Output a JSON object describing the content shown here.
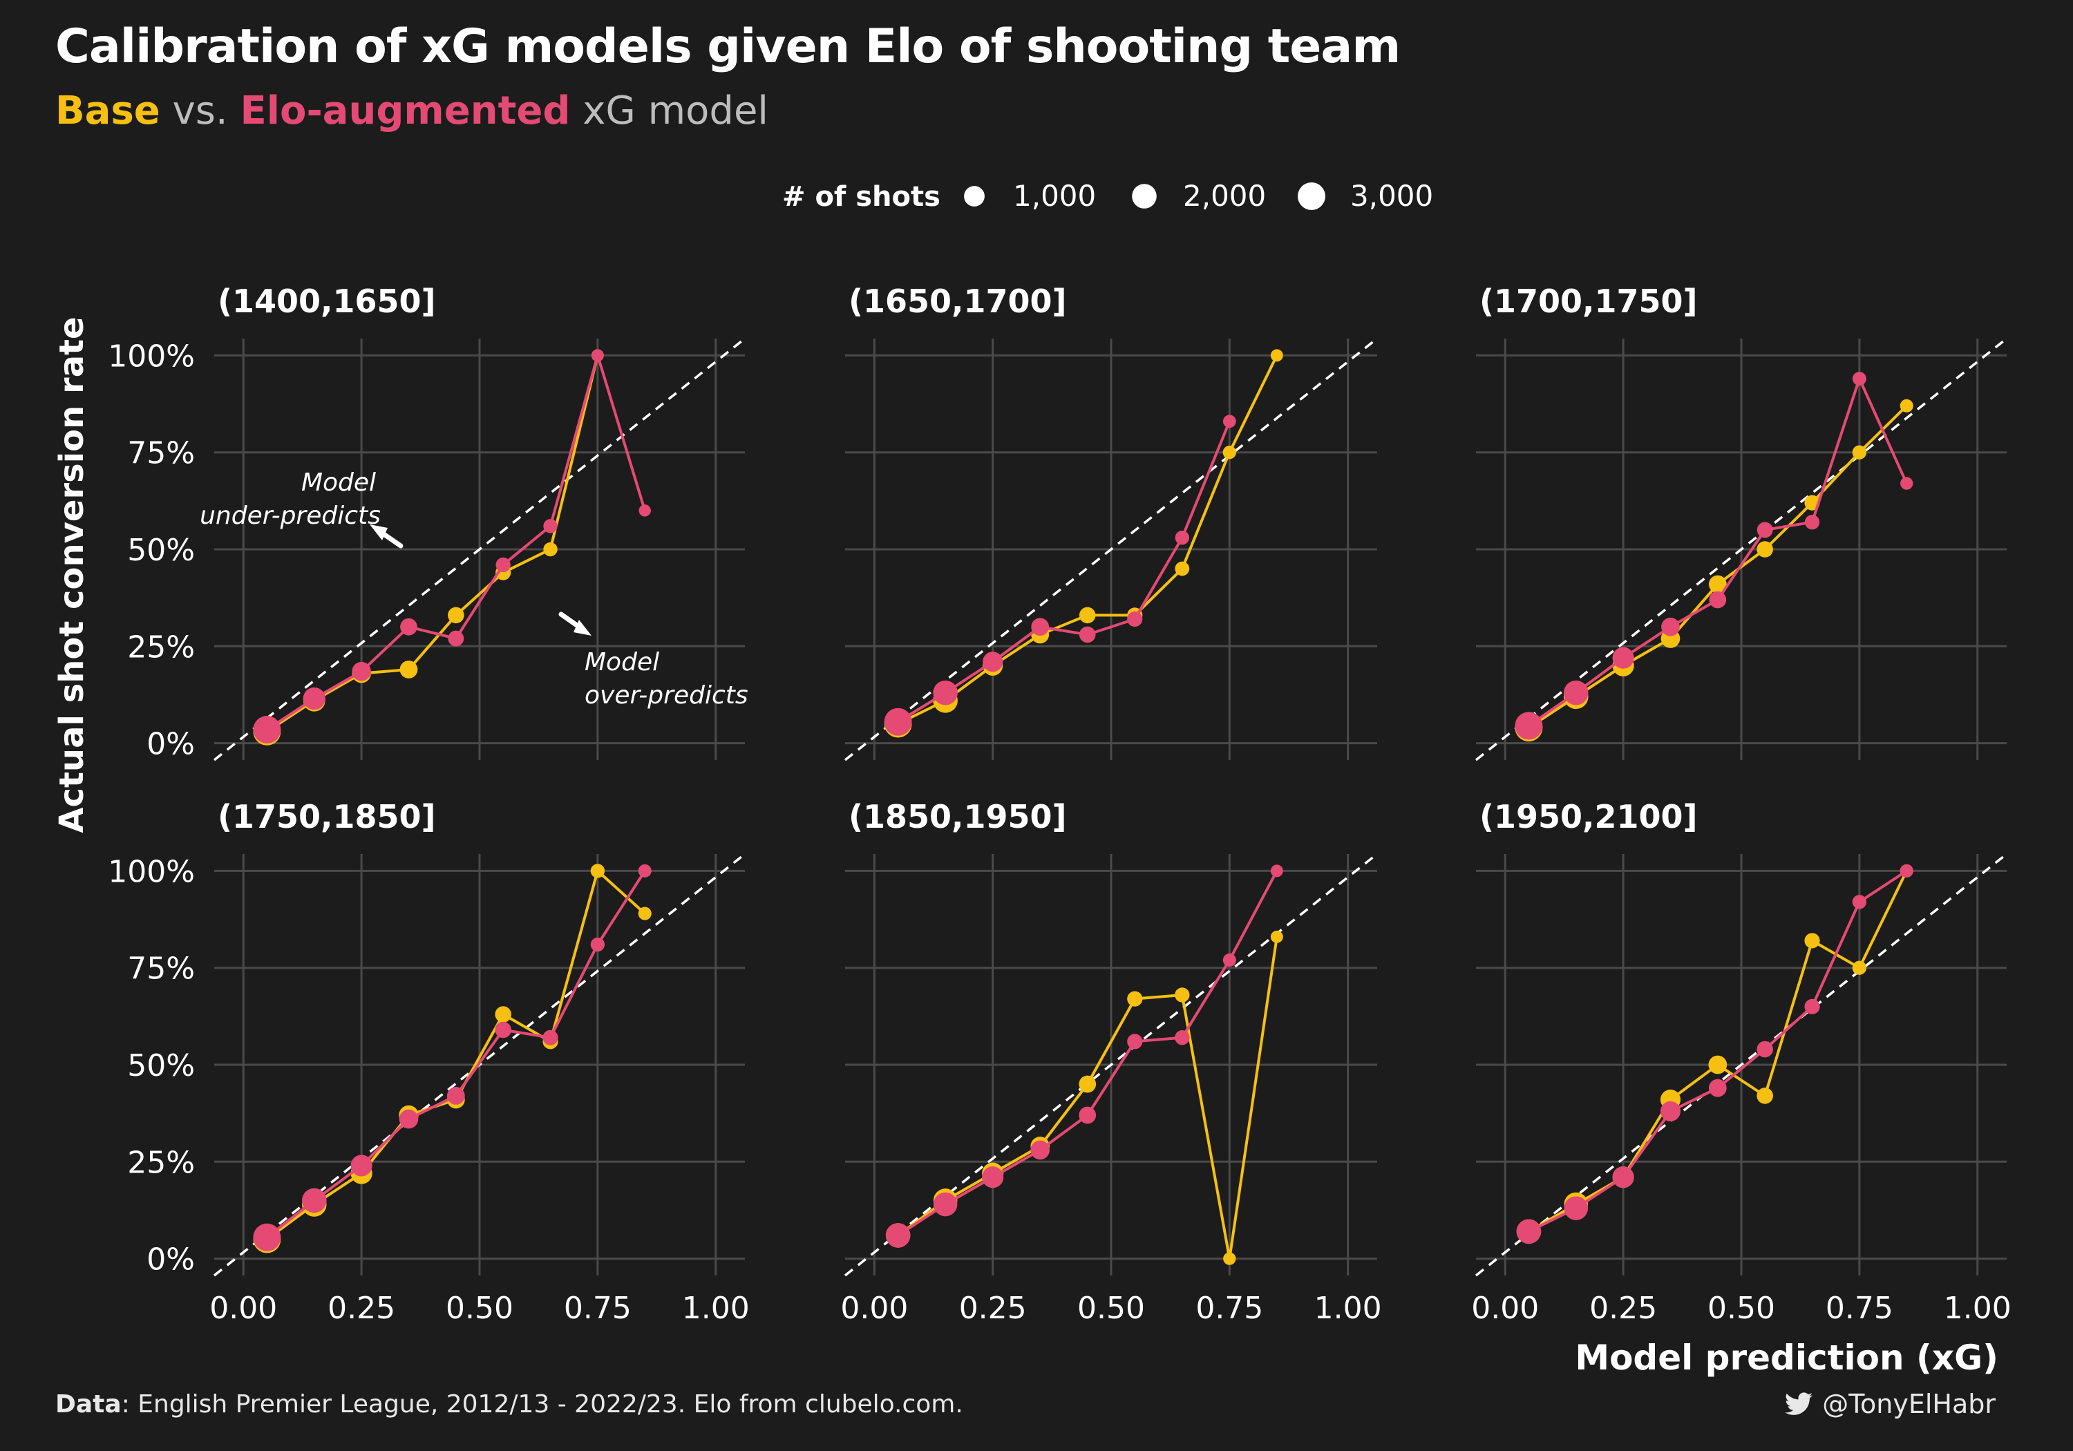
{
  "title": "Calibration of xG models given Elo of shooting team",
  "subtitle": {
    "base": "Base",
    "vs": " vs. ",
    "elo": "Elo-augmented",
    "rest": " xG model"
  },
  "footer": {
    "data_label": "Data",
    "data_text": ": English Premier League, 2012/13 - 2022/23. Elo from clubelo.com.",
    "handle": "@TonyElHabr",
    "handle_icon": "twitter-bird-icon"
  },
  "colors": {
    "background": "#1c1c1c",
    "base": "#f5c010",
    "elo": "#e44a73",
    "grid": "#4a4a4a",
    "diagonal": "#ffffff"
  },
  "chart_data": {
    "type": "line",
    "xlabel": "Model prediction (xG)",
    "ylabel": "Actual shot conversion rate",
    "xlim": [
      0,
      1
    ],
    "ylim": [
      0,
      1
    ],
    "x_ticks": [
      "0.00",
      "0.25",
      "0.50",
      "0.75",
      "1.00"
    ],
    "y_ticks": [
      "0%",
      "25%",
      "50%",
      "75%",
      "100%"
    ],
    "grid": true,
    "legend": {
      "title": "# of shots",
      "placement": "top",
      "entries": [
        {
          "label": "1,000",
          "value": 1000
        },
        {
          "label": "2,000",
          "value": 2000
        },
        {
          "label": "3,000",
          "value": 3000
        }
      ]
    },
    "annotations": [
      {
        "panel": 0,
        "text": [
          "Model",
          "under-predicts"
        ]
      },
      {
        "panel": 0,
        "text": [
          "Model",
          "over-predicts"
        ]
      }
    ],
    "x": [
      0.05,
      0.15,
      0.25,
      0.35,
      0.45,
      0.55,
      0.65,
      0.75,
      0.85
    ],
    "panels": [
      {
        "label": "(1400,1650]",
        "series": [
          {
            "name": "Base",
            "y": [
              0.03,
              0.11,
              0.18,
              0.19,
              0.33,
              0.44,
              0.5,
              1.0,
              null
            ],
            "n": [
              3000,
              1300,
              700,
              500,
              300,
              200,
              100,
              20,
              null
            ]
          },
          {
            "name": "Elo-augmented",
            "y": [
              0.035,
              0.115,
              0.185,
              0.3,
              0.27,
              0.46,
              0.56,
              1.0,
              0.6
            ],
            "n": [
              3000,
              1400,
              700,
              400,
              250,
              150,
              100,
              20,
              10
            ]
          }
        ]
      },
      {
        "label": "(1650,1700]",
        "series": [
          {
            "name": "Base",
            "y": [
              0.05,
              0.11,
              0.2,
              0.28,
              0.33,
              0.33,
              0.45,
              0.75,
              1.0
            ],
            "n": [
              3000,
              2000,
              900,
              500,
              300,
              200,
              120,
              60,
              20
            ]
          },
          {
            "name": "Elo-augmented",
            "y": [
              0.055,
              0.13,
              0.21,
              0.3,
              0.28,
              0.32,
              0.53,
              0.83,
              null
            ],
            "n": [
              3000,
              2000,
              900,
              500,
              300,
              200,
              100,
              40,
              null
            ]
          }
        ]
      },
      {
        "label": "(1700,1750]",
        "series": [
          {
            "name": "Base",
            "y": [
              0.04,
              0.12,
              0.2,
              0.27,
              0.41,
              0.5,
              0.62,
              0.75,
              0.87
            ],
            "n": [
              3000,
              2000,
              1200,
              700,
              500,
              300,
              200,
              100,
              50
            ]
          },
          {
            "name": "Elo-augmented",
            "y": [
              0.045,
              0.13,
              0.22,
              0.3,
              0.37,
              0.55,
              0.57,
              0.94,
              0.67
            ],
            "n": [
              3000,
              2000,
              1200,
              600,
              400,
              250,
              150,
              80,
              30
            ]
          }
        ]
      },
      {
        "label": "(1750,1850]",
        "series": [
          {
            "name": "Base",
            "y": [
              0.05,
              0.14,
              0.22,
              0.37,
              0.41,
              0.63,
              0.56,
              1.0,
              0.89
            ],
            "n": [
              3000,
              2000,
              1200,
              800,
              500,
              300,
              200,
              100,
              50
            ]
          },
          {
            "name": "Elo-augmented",
            "y": [
              0.055,
              0.15,
              0.24,
              0.36,
              0.42,
              0.59,
              0.57,
              0.81,
              1.0
            ],
            "n": [
              3000,
              2000,
              1200,
              700,
              500,
              300,
              200,
              100,
              50
            ]
          }
        ]
      },
      {
        "label": "(1850,1950]",
        "series": [
          {
            "name": "Base",
            "y": [
              0.06,
              0.15,
              0.22,
              0.29,
              0.45,
              0.67,
              0.68,
              0.0,
              0.83
            ],
            "n": [
              2000,
              1800,
              1200,
              700,
              400,
              200,
              150,
              30,
              20
            ]
          },
          {
            "name": "Elo-augmented",
            "y": [
              0.06,
              0.14,
              0.21,
              0.28,
              0.37,
              0.56,
              0.57,
              0.77,
              1.0
            ],
            "n": [
              2000,
              1800,
              1200,
              700,
              400,
              200,
              150,
              50,
              20
            ]
          }
        ]
      },
      {
        "label": "(1950,2100]",
        "series": [
          {
            "name": "Base",
            "y": [
              0.07,
              0.14,
              0.21,
              0.41,
              0.5,
              0.42,
              0.82,
              0.75,
              1.0
            ],
            "n": [
              2000,
              1800,
              1200,
              900,
              600,
              300,
              200,
              100,
              50
            ]
          },
          {
            "name": "Elo-augmented",
            "y": [
              0.07,
              0.13,
              0.21,
              0.38,
              0.44,
              0.54,
              0.65,
              0.92,
              1.0
            ],
            "n": [
              2000,
              1800,
              1200,
              900,
              500,
              300,
              200,
              100,
              50
            ]
          }
        ]
      }
    ]
  }
}
